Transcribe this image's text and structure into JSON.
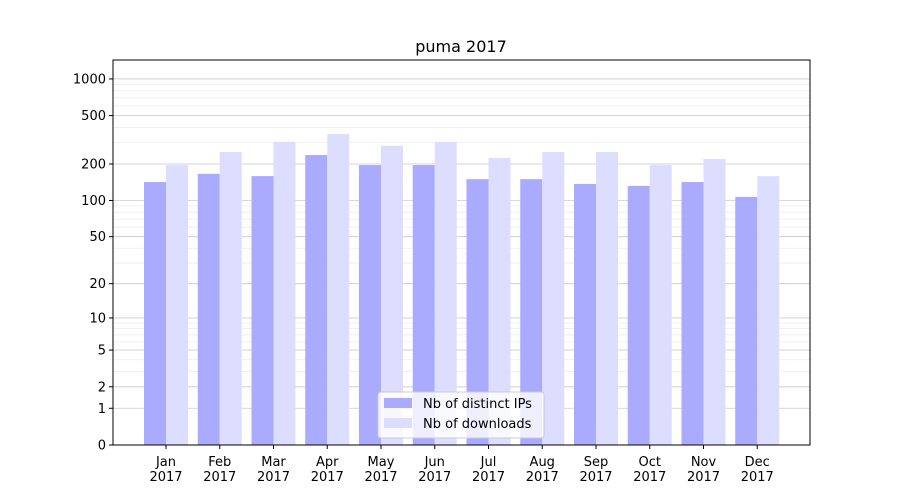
{
  "chart_data": {
    "type": "bar",
    "title": "puma 2017",
    "xlabel": "",
    "ylabel": "",
    "yscale": "log10(1+y)",
    "ylim": [
      0,
      1430
    ],
    "yticks": [
      0,
      1,
      2,
      5,
      10,
      20,
      50,
      100,
      200,
      500,
      1000
    ],
    "grid": true,
    "legend_position": "bottom-center",
    "categories": [
      "Jan\n2017",
      "Feb\n2017",
      "Mar\n2017",
      "Apr\n2017",
      "May\n2017",
      "Jun\n2017",
      "Jul\n2017",
      "Aug\n2017",
      "Sep\n2017",
      "Oct\n2017",
      "Nov\n2017",
      "Dec\n2017"
    ],
    "series": [
      {
        "name": "Nb of distinct IPs",
        "color": "#aaaaff",
        "values": [
          142,
          166,
          159,
          237,
          196,
          196,
          150,
          150,
          137,
          132,
          142,
          107
        ]
      },
      {
        "name": "Nb of downloads",
        "color": "#ddddff",
        "values": [
          196,
          251,
          304,
          353,
          282,
          304,
          224,
          251,
          251,
          196,
          220,
          159
        ]
      }
    ]
  }
}
